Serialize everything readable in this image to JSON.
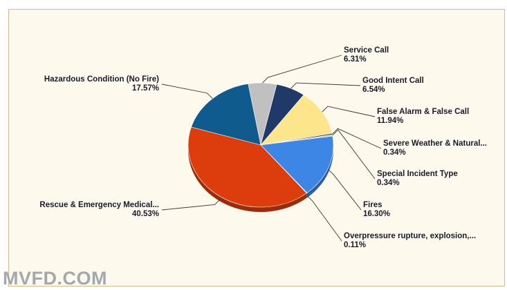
{
  "chart_data": {
    "type": "pie",
    "slices": [
      {
        "label": "Service Call",
        "pct_label": "6.31%",
        "value": 6.31,
        "color": "#c0c0c0"
      },
      {
        "label": "Good Intent Call",
        "pct_label": "6.54%",
        "value": 6.54,
        "color": "#1f3a68"
      },
      {
        "label": "False Alarm & False Call",
        "pct_label": "11.94%",
        "value": 11.94,
        "color": "#fde58c"
      },
      {
        "label": "Severe Weather & Natural...",
        "pct_label": "0.34%",
        "value": 0.34,
        "color": "#2c3d52"
      },
      {
        "label": "Special Incident Type",
        "pct_label": "0.34%",
        "value": 0.34,
        "color": "#d8c8a0"
      },
      {
        "label": "Fires",
        "pct_label": "16.30%",
        "value": 16.3,
        "color": "#3e86e6"
      },
      {
        "label": "Overpressure  rupture,  explosion,...",
        "pct_label": "0.11%",
        "value": 0.11,
        "color": "#6b4a8a"
      },
      {
        "label": "Rescue & Emergency Medical...",
        "pct_label": "40.53%",
        "value": 40.53,
        "color": "#dd3d0d"
      },
      {
        "label": "Hazardous Condition (No Fire)",
        "pct_label": "17.57%",
        "value": 17.57,
        "color": "#0f5b8e"
      }
    ]
  },
  "watermark": "MVFD.COM"
}
